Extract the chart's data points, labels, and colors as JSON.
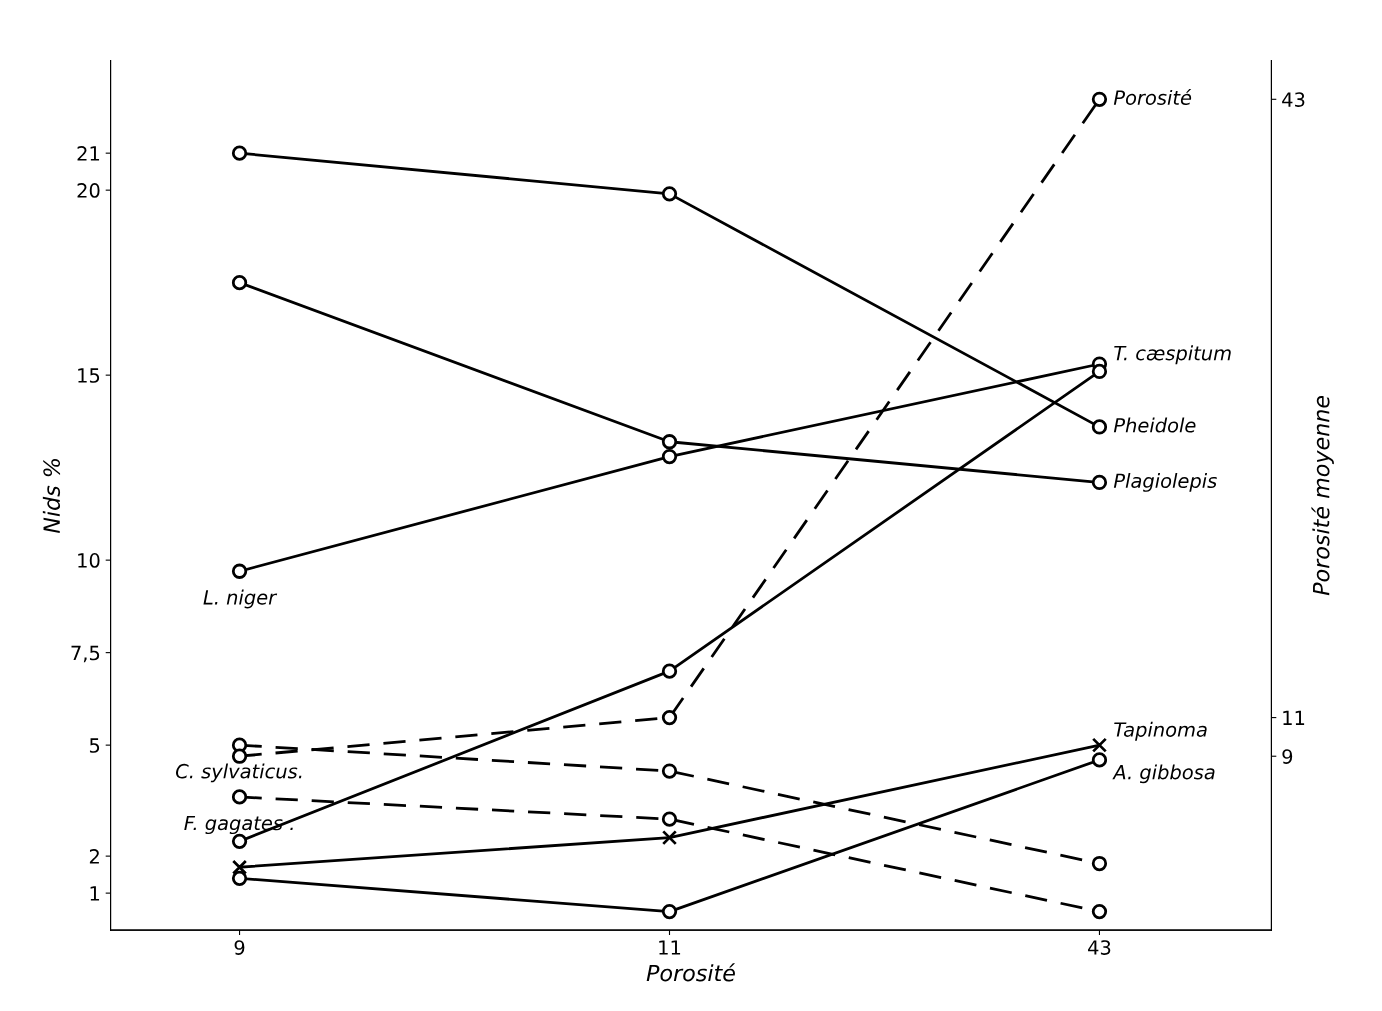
{
  "chart_data": {
    "type": "line",
    "xlabel": "Porosité",
    "ylabel": "Nids %",
    "y2label": "Porosité moyenne",
    "categories": [
      "9",
      "11",
      "43"
    ],
    "ylim": [
      0,
      23.5
    ],
    "yticks": [
      1,
      2,
      5,
      {
        "value": 7.5,
        "label": "7,5"
      },
      10,
      15,
      20,
      21
    ],
    "y2lim": [
      0,
      45
    ],
    "y2ticks": [
      9,
      11,
      43
    ],
    "marker": "circle",
    "grid": false,
    "series": [
      {
        "color": "#000000",
        "values": [
          21.0,
          19.9,
          13.6
        ]
      },
      {
        "color": "#000000",
        "values": [
          9.7,
          12.8,
          15.3
        ]
      },
      {
        "color": "#000000",
        "values": [
          2.4,
          7.0,
          15.1
        ]
      },
      {
        "color": "#000000",
        "values": [
          17.5,
          13.2,
          12.1
        ]
      },
      {
        "color": "#000000",
        "values": [
          1.7,
          2.5,
          5.0
        ],
        "marker": "cross"
      },
      {
        "color": "#000000",
        "values": [
          1.4,
          0.5,
          4.6
        ]
      },
      {
        "color": "#000000",
        "values": [
          5.0,
          4.3,
          1.8
        ],
        "line_style": "dashed"
      },
      {
        "color": "#000000",
        "values": [
          3.6,
          3.0,
          0.5
        ],
        "line_style": "dashed"
      },
      {
        "name": "Porosité",
        "color": "#000000",
        "values": [
          9,
          11,
          43
        ],
        "axis": "y2",
        "line_style": "dashed"
      }
    ],
    "annotations": [
      {
        "text": "Pheidole",
        "x": "43",
        "y": 13.6
      },
      {
        "text": "L. niger",
        "x": "9",
        "y": 9.7
      },
      {
        "text": "T. cæspitum",
        "x": "43",
        "y": 15.1
      },
      {
        "text": "Plagiolepis",
        "x": "43",
        "y": 12.1
      },
      {
        "text": "Tapinoma",
        "x": "43",
        "y": 5.0
      },
      {
        "text": "A. gibbosa",
        "x": "43",
        "y": 4.6
      },
      {
        "text": "C. sylvaticus.",
        "x": "9",
        "y": 5.0
      },
      {
        "text": "F. gagates .",
        "x": "9",
        "y": 3.6
      }
    ]
  }
}
